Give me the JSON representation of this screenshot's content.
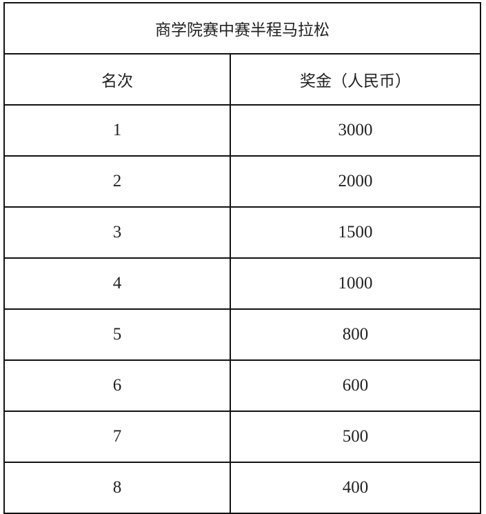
{
  "title": "商学院赛中赛半程马拉松",
  "headers": {
    "rank": "名次",
    "prize": "奖金（人民币）"
  },
  "rows": [
    {
      "rank": "1",
      "prize": "3000"
    },
    {
      "rank": "2",
      "prize": "2000"
    },
    {
      "rank": "3",
      "prize": "1500"
    },
    {
      "rank": "4",
      "prize": "1000"
    },
    {
      "rank": "5",
      "prize": "800"
    },
    {
      "rank": "6",
      "prize": "600"
    },
    {
      "rank": "7",
      "prize": "500"
    },
    {
      "rank": "8",
      "prize": "400"
    }
  ]
}
